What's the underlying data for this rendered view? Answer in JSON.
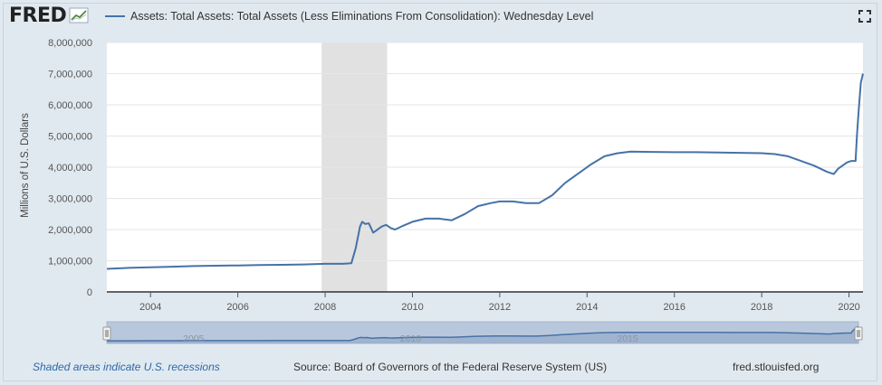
{
  "app": {
    "logo_text": "FRED",
    "logo_icon": "fred-graph-icon",
    "fullscreen_icon": "fullscreen-icon"
  },
  "legend": {
    "series_label": "Assets: Total Assets: Total Assets (Less Eliminations From Consolidation): Wednesday Level",
    "color": "#4572a7"
  },
  "footer": {
    "recession_note": "Shaded areas indicate U.S. recessions",
    "source": "Source: Board of Governors of the Federal Reserve System (US)",
    "site": "fred.stlouisfed.org",
    "note_color": "#2b6aa8"
  },
  "chart_data": {
    "type": "line",
    "title": "",
    "xlabel": "",
    "ylabel": "Millions of U.S. Dollars",
    "xlim": [
      2003.0,
      2020.32
    ],
    "ylim": [
      0,
      8000000
    ],
    "x_ticks": [
      2004,
      2006,
      2008,
      2010,
      2012,
      2014,
      2016,
      2018,
      2020
    ],
    "x_tick_labels": [
      "2004",
      "2006",
      "2008",
      "2010",
      "2012",
      "2014",
      "2016",
      "2018",
      "2020"
    ],
    "y_ticks": [
      0,
      1000000,
      2000000,
      3000000,
      4000000,
      5000000,
      6000000,
      7000000,
      8000000
    ],
    "y_tick_labels": [
      "0",
      "1,000,000",
      "2,000,000",
      "3,000,000",
      "4,000,000",
      "5,000,000",
      "6,000,000",
      "7,000,000",
      "8,000,000"
    ],
    "recessions": [
      [
        2007.92,
        2009.42
      ]
    ],
    "series": [
      {
        "name": "Assets: Total Assets: Total Assets (Less Eliminations From Consolidation): Wednesday Level",
        "color": "#4572a7",
        "x": [
          2003.0,
          2003.5,
          2004.0,
          2004.5,
          2005.0,
          2005.5,
          2006.0,
          2006.5,
          2007.0,
          2007.5,
          2008.0,
          2008.4,
          2008.6,
          2008.7,
          2008.8,
          2008.85,
          2008.92,
          2009.0,
          2009.1,
          2009.2,
          2009.3,
          2009.4,
          2009.5,
          2009.6,
          2009.75,
          2010.0,
          2010.3,
          2010.6,
          2010.9,
          2011.2,
          2011.5,
          2011.8,
          2012.0,
          2012.3,
          2012.6,
          2012.9,
          2013.2,
          2013.5,
          2013.8,
          2014.1,
          2014.4,
          2014.7,
          2015.0,
          2015.5,
          2016.0,
          2016.5,
          2017.0,
          2017.5,
          2018.0,
          2018.3,
          2018.6,
          2018.9,
          2019.2,
          2019.5,
          2019.65,
          2019.75,
          2019.85,
          2019.95,
          2020.05,
          2020.15,
          2020.18,
          2020.22,
          2020.27,
          2020.32
        ],
        "values": [
          740000,
          770000,
          790000,
          810000,
          830000,
          840000,
          850000,
          860000,
          870000,
          880000,
          900000,
          900000,
          920000,
          1400000,
          2100000,
          2250000,
          2180000,
          2200000,
          1900000,
          2000000,
          2100000,
          2150000,
          2050000,
          2000000,
          2100000,
          2250000,
          2350000,
          2350000,
          2300000,
          2500000,
          2750000,
          2850000,
          2900000,
          2900000,
          2850000,
          2850000,
          3100000,
          3500000,
          3800000,
          4100000,
          4350000,
          4450000,
          4500000,
          4490000,
          4480000,
          4480000,
          4470000,
          4460000,
          4450000,
          4420000,
          4350000,
          4200000,
          4050000,
          3850000,
          3780000,
          3950000,
          4050000,
          4150000,
          4200000,
          4200000,
          5000000,
          5800000,
          6700000,
          7000000
        ]
      }
    ],
    "navigator": {
      "labels": [
        "2005",
        "2010",
        "2015"
      ],
      "label_years": [
        2005,
        2010,
        2015
      ]
    }
  }
}
